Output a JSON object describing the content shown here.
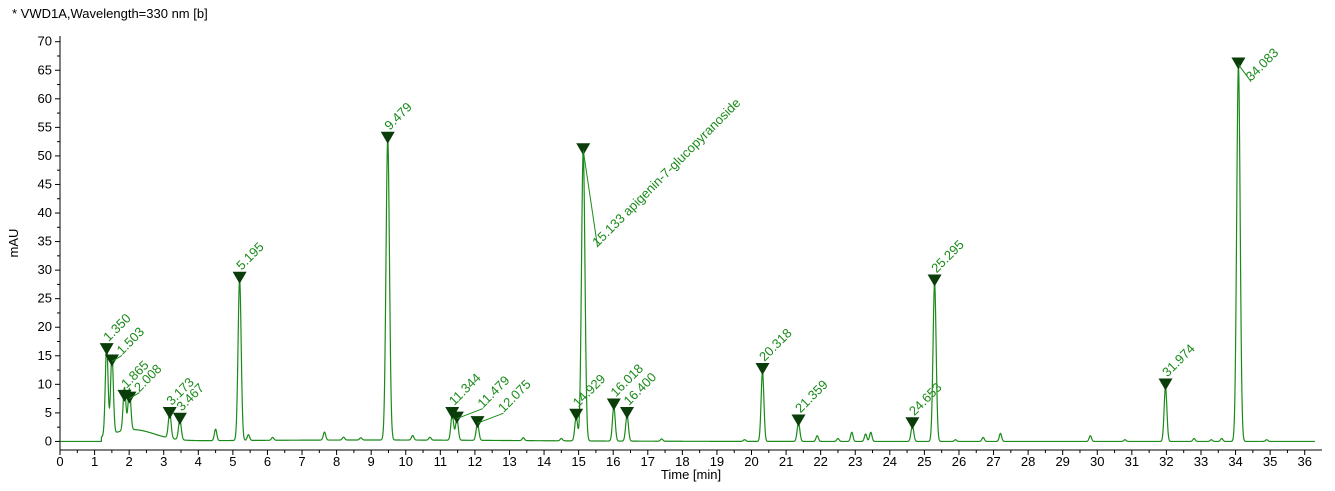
{
  "colors": {
    "trace": "#1a8a1a",
    "marker": "#0a3d0a",
    "axis": "#000000"
  },
  "chart_data": {
    "type": "line",
    "title": "* VWD1A,Wavelength=330 nm [b]",
    "xlabel": "Time [min]",
    "ylabel": "mAU",
    "xlim": [
      0,
      36.5
    ],
    "ylim": [
      -1.5,
      71
    ],
    "x_ticks": [
      0,
      1,
      2,
      3,
      4,
      5,
      6,
      7,
      8,
      9,
      10,
      11,
      12,
      13,
      14,
      15,
      16,
      17,
      18,
      19,
      20,
      21,
      22,
      23,
      24,
      25,
      26,
      27,
      28,
      29,
      30,
      31,
      32,
      33,
      34,
      35,
      36
    ],
    "y_ticks": [
      0,
      5,
      10,
      15,
      20,
      25,
      30,
      35,
      40,
      45,
      50,
      55,
      60,
      65,
      70
    ],
    "grid": false,
    "legend": "none",
    "peaks": [
      {
        "rt": 1.35,
        "height": 16.0,
        "label": "1.350"
      },
      {
        "rt": 1.503,
        "height": 14.0,
        "label": "1.503"
      },
      {
        "rt": 1.865,
        "height": 7.8,
        "label": "1.865"
      },
      {
        "rt": 2.008,
        "height": 7.5,
        "label": "2.008"
      },
      {
        "rt": 3.173,
        "height": 4.8,
        "label": "3.173"
      },
      {
        "rt": 3.467,
        "height": 3.8,
        "label": "3.467"
      },
      {
        "rt": 5.195,
        "height": 28.5,
        "label": "5.195"
      },
      {
        "rt": 9.479,
        "height": 53.0,
        "label": "9.479"
      },
      {
        "rt": 11.344,
        "height": 4.8,
        "label": "11.344"
      },
      {
        "rt": 11.479,
        "height": 4.0,
        "label": "11.479"
      },
      {
        "rt": 12.075,
        "height": 3.2,
        "label": "12.075"
      },
      {
        "rt": 14.929,
        "height": 4.5,
        "label": "14.929"
      },
      {
        "rt": 15.133,
        "height": 51.0,
        "label": "15.133 apigenin-7-glucopyranoside"
      },
      {
        "rt": 16.018,
        "height": 6.3,
        "label": "16.018"
      },
      {
        "rt": 16.4,
        "height": 4.8,
        "label": "16.400"
      },
      {
        "rt": 20.318,
        "height": 12.5,
        "label": "20.318"
      },
      {
        "rt": 21.359,
        "height": 3.5,
        "label": "21.359"
      },
      {
        "rt": 24.653,
        "height": 3.0,
        "label": "24.653"
      },
      {
        "rt": 25.295,
        "height": 28.0,
        "label": "25.295"
      },
      {
        "rt": 31.974,
        "height": 9.8,
        "label": "31.974"
      },
      {
        "rt": 34.083,
        "height": 66.0,
        "label": "34.083"
      }
    ],
    "minor_peaks": [
      {
        "rt": 4.5,
        "height": 2.0
      },
      {
        "rt": 5.45,
        "height": 1.0
      },
      {
        "rt": 6.15,
        "height": 0.5
      },
      {
        "rt": 7.65,
        "height": 1.4
      },
      {
        "rt": 8.2,
        "height": 0.5
      },
      {
        "rt": 8.7,
        "height": 0.4
      },
      {
        "rt": 10.2,
        "height": 0.8
      },
      {
        "rt": 10.7,
        "height": 0.5
      },
      {
        "rt": 13.4,
        "height": 0.5
      },
      {
        "rt": 14.5,
        "height": 0.4
      },
      {
        "rt": 17.4,
        "height": 0.4
      },
      {
        "rt": 19.8,
        "height": 0.3
      },
      {
        "rt": 21.9,
        "height": 1.0
      },
      {
        "rt": 22.5,
        "height": 0.5
      },
      {
        "rt": 22.9,
        "height": 1.6
      },
      {
        "rt": 23.3,
        "height": 1.3
      },
      {
        "rt": 23.45,
        "height": 1.6
      },
      {
        "rt": 25.9,
        "height": 0.3
      },
      {
        "rt": 26.7,
        "height": 0.7
      },
      {
        "rt": 27.2,
        "height": 1.4
      },
      {
        "rt": 29.8,
        "height": 1.0
      },
      {
        "rt": 30.8,
        "height": 0.3
      },
      {
        "rt": 32.8,
        "height": 0.5
      },
      {
        "rt": 33.3,
        "height": 0.3
      },
      {
        "rt": 33.6,
        "height": 0.5
      },
      {
        "rt": 34.9,
        "height": 0.3
      }
    ]
  }
}
